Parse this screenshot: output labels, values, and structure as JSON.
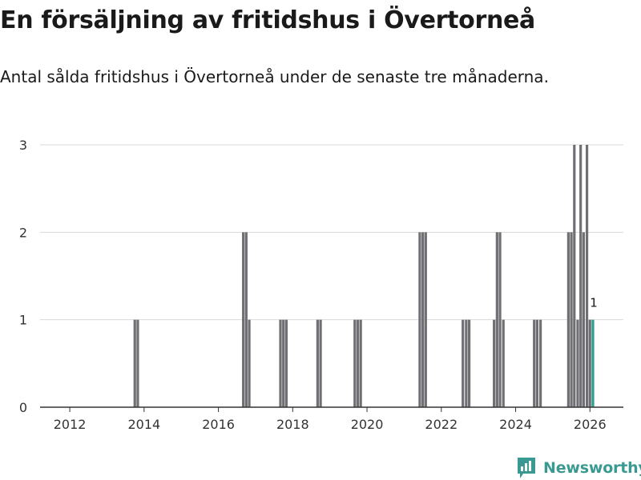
{
  "title": "En försäljning av fritidshus i Övertorneå",
  "subtitle": "Antal sålda fritidshus i Övertorneå under de senaste tre månaderna.",
  "brand": {
    "name": "Newsworthy",
    "icon": "bar-chart-logo-icon"
  },
  "colors": {
    "bar": "#707074",
    "highlight": "#2a9d8f",
    "grid": "#d9d9d9",
    "axis": "#333333",
    "brand": "#3a9a92"
  },
  "chart_data": {
    "type": "bar",
    "xlim": [
      2011.2,
      2026.9
    ],
    "ylim": [
      0,
      3
    ],
    "x_ticks": [
      2012,
      2014,
      2016,
      2018,
      2020,
      2022,
      2024,
      2026
    ],
    "y_ticks": [
      0,
      1,
      2,
      3
    ],
    "grid": true,
    "bars": [
      {
        "x": 2013.75,
        "value": 1
      },
      {
        "x": 2013.83,
        "value": 1
      },
      {
        "x": 2016.67,
        "value": 2
      },
      {
        "x": 2016.75,
        "value": 2
      },
      {
        "x": 2016.83,
        "value": 1
      },
      {
        "x": 2017.67,
        "value": 1
      },
      {
        "x": 2017.75,
        "value": 1
      },
      {
        "x": 2017.83,
        "value": 1
      },
      {
        "x": 2018.67,
        "value": 1
      },
      {
        "x": 2018.75,
        "value": 1
      },
      {
        "x": 2019.67,
        "value": 1
      },
      {
        "x": 2019.75,
        "value": 1
      },
      {
        "x": 2019.83,
        "value": 1
      },
      {
        "x": 2021.42,
        "value": 2
      },
      {
        "x": 2021.5,
        "value": 2
      },
      {
        "x": 2021.58,
        "value": 2
      },
      {
        "x": 2022.58,
        "value": 1
      },
      {
        "x": 2022.67,
        "value": 1
      },
      {
        "x": 2022.75,
        "value": 1
      },
      {
        "x": 2023.42,
        "value": 1
      },
      {
        "x": 2023.5,
        "value": 2
      },
      {
        "x": 2023.58,
        "value": 2
      },
      {
        "x": 2023.67,
        "value": 1
      },
      {
        "x": 2024.5,
        "value": 1
      },
      {
        "x": 2024.58,
        "value": 1
      },
      {
        "x": 2024.67,
        "value": 1
      },
      {
        "x": 2025.42,
        "value": 2
      },
      {
        "x": 2025.5,
        "value": 2
      },
      {
        "x": 2025.58,
        "value": 3
      },
      {
        "x": 2025.67,
        "value": 1
      },
      {
        "x": 2025.75,
        "value": 3
      },
      {
        "x": 2025.83,
        "value": 2
      },
      {
        "x": 2025.92,
        "value": 3
      },
      {
        "x": 2026.0,
        "value": 1
      },
      {
        "x": 2026.08,
        "value": 1,
        "highlight": true,
        "label": "1"
      }
    ]
  }
}
